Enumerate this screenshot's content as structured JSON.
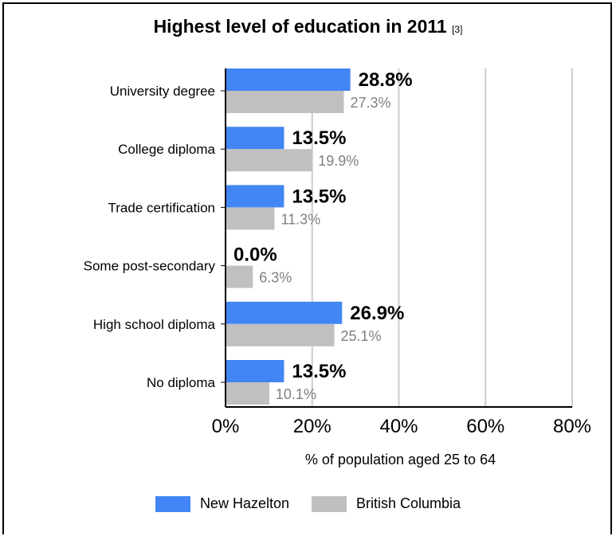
{
  "chart_data": {
    "type": "bar",
    "orientation": "horizontal",
    "title": "Highest level of education in 2011",
    "title_ref": "[3]",
    "xlabel": "% of population aged 25 to 64",
    "xlim": [
      0,
      80
    ],
    "xticks": [
      "0%",
      "20%",
      "40%",
      "60%",
      "80%"
    ],
    "grid": true,
    "legend_position": "bottom",
    "categories": [
      "University degree",
      "College diploma",
      "Trade certification",
      "Some post-secondary",
      "High school diploma",
      "No diploma"
    ],
    "series": [
      {
        "name": "New Hazelton",
        "color": "#4285f4",
        "values": [
          28.8,
          13.5,
          13.5,
          0.0,
          26.9,
          13.5
        ],
        "labels": [
          "28.8%",
          "13.5%",
          "13.5%",
          "0.0%",
          "26.9%",
          "13.5%"
        ]
      },
      {
        "name": "British Columbia",
        "color": "#c0c0c0",
        "values": [
          27.3,
          19.9,
          11.3,
          6.3,
          25.1,
          10.1
        ],
        "labels": [
          "27.3%",
          "19.9%",
          "11.3%",
          "6.3%",
          "25.1%",
          "10.1%"
        ]
      }
    ]
  }
}
